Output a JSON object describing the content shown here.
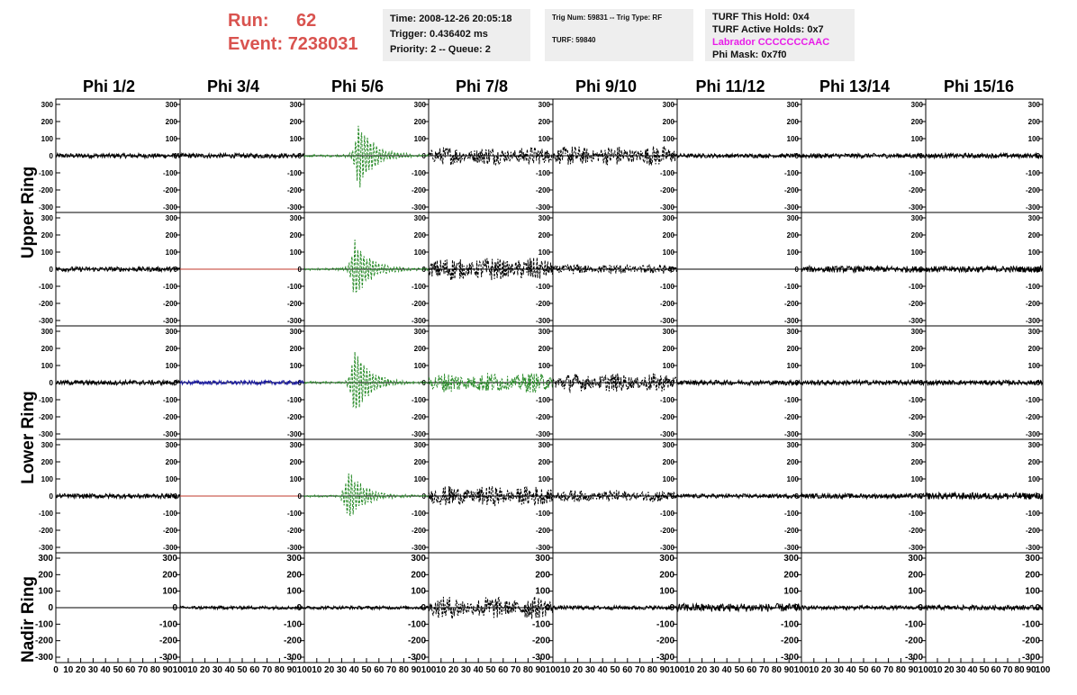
{
  "header": {
    "run_label": "Run:",
    "run_value": "62",
    "event_label": "Event:",
    "event_value": "7238031",
    "time_line": "Time: 2008-12-26 20:05:18",
    "trigger_line": "Trigger: 0.436402 ms",
    "priority_line": "Priority: 2 -- Queue: 2",
    "trig_line": "Trig Num: 59831 -- Trig Type: RF",
    "turf_line": "TURF: 59840",
    "turf_hold_line": "TURF This Hold: 0x4",
    "turf_active_line": "TURF Active Holds: 0x7",
    "labrador_line": "Labrador CCCCCCCAAC",
    "phi_mask_line": "Phi Mask: 0x7f0"
  },
  "colors": {
    "run_red": "#d9534f",
    "labrador_pink": "#e81ce8",
    "green": "#2a8c2a",
    "blue": "#1a1aa0",
    "red_flat": "#c0392b",
    "black": "#000000"
  },
  "chart_data": {
    "type": "line",
    "columns": [
      "Phi 1/2",
      "Phi 3/4",
      "Phi 5/6",
      "Phi 7/8",
      "Phi 9/10",
      "Phi 11/12",
      "Phi 13/14",
      "Phi 15/16"
    ],
    "rows": [
      "Upper Ring",
      "Lower Ring",
      "Nadir Ring"
    ],
    "ylim": [
      -300,
      300
    ],
    "yticks": [
      300,
      200,
      100,
      0,
      -100,
      -200,
      -300
    ],
    "yticks_left_panel": [
      "300",
      "200",
      "100",
      "0",
      "-100",
      "-200",
      "-300"
    ],
    "xlim": [
      0,
      100
    ],
    "xticks_first_panel": [
      "0",
      "10",
      "20",
      "30",
      "40",
      "50",
      "60",
      "70",
      "80",
      "90",
      "100"
    ],
    "xticks_other_panels": [
      "10",
      "20",
      "30",
      "40",
      "50",
      "60",
      "70",
      "80",
      "90",
      "100"
    ],
    "panels": [
      [
        {
          "kind": "noise",
          "amp": 14,
          "color": "black"
        },
        {
          "kind": "noise",
          "amp": 14,
          "color": "black"
        },
        {
          "kind": "pulse",
          "amp": 200,
          "center": 43,
          "color": "green"
        },
        {
          "kind": "band",
          "amp": 55,
          "color": "black"
        },
        {
          "kind": "band",
          "amp": 60,
          "color": "black"
        },
        {
          "kind": "noise",
          "amp": 12,
          "color": "black"
        },
        {
          "kind": "noise",
          "amp": 14,
          "color": "black"
        },
        {
          "kind": "noise",
          "amp": 14,
          "color": "black"
        }
      ],
      [
        {
          "kind": "noise",
          "amp": 14,
          "color": "black"
        },
        {
          "kind": "flat",
          "amp": 0,
          "color": "red_flat"
        },
        {
          "kind": "pulse",
          "amp": 170,
          "center": 40,
          "color": "green"
        },
        {
          "kind": "band",
          "amp": 70,
          "color": "black"
        },
        {
          "kind": "band",
          "amp": 30,
          "color": "black"
        },
        {
          "kind": "flat",
          "amp": 0,
          "color": "black"
        },
        {
          "kind": "noise",
          "amp": 18,
          "color": "black"
        },
        {
          "kind": "noise",
          "amp": 18,
          "color": "black"
        }
      ],
      [
        {
          "kind": "noise",
          "amp": 14,
          "color": "black"
        },
        {
          "kind": "noise",
          "amp": 12,
          "color": "blue"
        },
        {
          "kind": "pulse",
          "amp": 200,
          "center": 40,
          "color": "green"
        },
        {
          "kind": "band",
          "amp": 60,
          "color": "green"
        },
        {
          "kind": "band",
          "amp": 55,
          "color": "black"
        },
        {
          "kind": "noise",
          "amp": 14,
          "color": "black"
        },
        {
          "kind": "noise",
          "amp": 14,
          "color": "black"
        },
        {
          "kind": "noise",
          "amp": 14,
          "color": "black"
        }
      ],
      [
        {
          "kind": "noise",
          "amp": 14,
          "color": "black"
        },
        {
          "kind": "flat",
          "amp": 0,
          "color": "red_flat"
        },
        {
          "kind": "pulse",
          "amp": 160,
          "center": 35,
          "color": "green"
        },
        {
          "kind": "band",
          "amp": 60,
          "color": "black"
        },
        {
          "kind": "band",
          "amp": 35,
          "color": "black"
        },
        {
          "kind": "noise",
          "amp": 12,
          "color": "black"
        },
        {
          "kind": "noise",
          "amp": 14,
          "color": "black"
        },
        {
          "kind": "noise",
          "amp": 20,
          "color": "black"
        }
      ],
      [
        {
          "kind": "flat",
          "amp": 0,
          "color": "black"
        },
        {
          "kind": "noise",
          "amp": 10,
          "color": "black"
        },
        {
          "kind": "noise",
          "amp": 10,
          "color": "black"
        },
        {
          "kind": "band",
          "amp": 70,
          "color": "black"
        },
        {
          "kind": "noise",
          "amp": 12,
          "color": "black"
        },
        {
          "kind": "noise",
          "amp": 25,
          "color": "black"
        },
        {
          "kind": "noise",
          "amp": 12,
          "color": "black"
        },
        {
          "kind": "noise",
          "amp": 14,
          "color": "black"
        }
      ]
    ]
  }
}
